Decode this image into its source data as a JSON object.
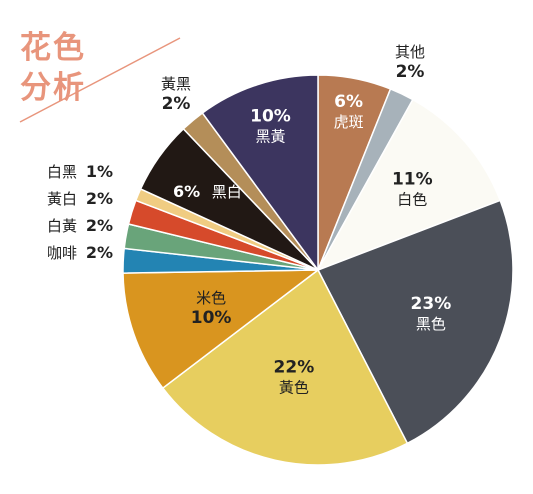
{
  "chart_data": {
    "type": "pie",
    "title": "花色分析",
    "title_lines": [
      "花色",
      "分析"
    ],
    "title_color": "#e8957c",
    "start": "top, clockwise",
    "slices": [
      {
        "label": "虎斑",
        "value": 6,
        "display": "6%",
        "color": "#b87a52"
      },
      {
        "label": "其他",
        "value": 2,
        "display": "2%",
        "color": "#a7b2ba"
      },
      {
        "label": "白色",
        "value": 11,
        "display": "11%",
        "color": "#fbfaf4"
      },
      {
        "label": "黑色",
        "value": 23,
        "display": "23%",
        "color": "#4b4f58"
      },
      {
        "label": "黃色",
        "value": 22,
        "display": "22%",
        "color": "#e7ce5f"
      },
      {
        "label": "米色",
        "value": 10,
        "display": "10%",
        "color": "#d9951f"
      },
      {
        "label": "咖啡",
        "value": 2,
        "display": "2%",
        "color": "#2384b3"
      },
      {
        "label": "白黃",
        "value": 2,
        "display": "2%",
        "color": "#69a47a"
      },
      {
        "label": "黃白",
        "value": 2,
        "display": "2%",
        "color": "#d64a2b"
      },
      {
        "label": "白黑",
        "value": 1,
        "display": "1%",
        "color": "#f0cc82"
      },
      {
        "label": "黑白",
        "value": 6,
        "display": "6%",
        "color": "#211814"
      },
      {
        "label": "黃黑",
        "value": 2,
        "display": "2%",
        "color": "#b48e59"
      },
      {
        "label": "黑黃",
        "value": 10,
        "display": "10%",
        "color": "#3c355f"
      }
    ]
  }
}
